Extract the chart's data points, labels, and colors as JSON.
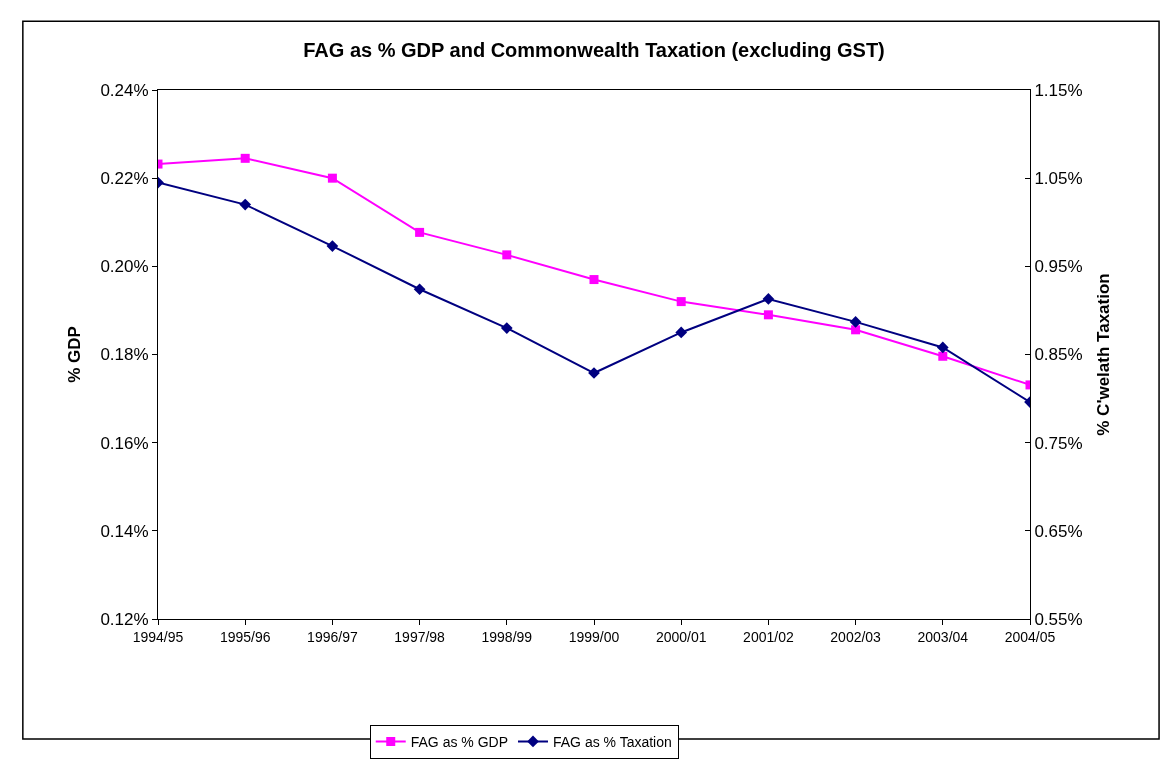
{
  "chart_data": {
    "type": "line",
    "title": "FAG as % GDP and Commonwealth Taxation (excluding GST)",
    "ylabel": "% GDP",
    "y2label": "% C'welath Taxation",
    "categories": [
      "1994/95",
      "1995/96",
      "1996/97",
      "1997/98",
      "1998/99",
      "1999/00",
      "2000/01",
      "2001/02",
      "2002/03",
      "2003/04",
      "2004/05"
    ],
    "series": [
      {
        "name": "FAG as % GDP",
        "color": "#ff00ff",
        "marker": "square",
        "values": [
          0.2232,
          0.2245,
          0.22,
          0.2077,
          0.2026,
          0.197,
          0.192,
          0.189,
          0.1856,
          0.1796,
          0.1731
        ]
      },
      {
        "name": "FAG as % Taxation",
        "color": "#000080",
        "marker": "diamond",
        "axis": "y2",
        "values": [
          1.045,
          1.02,
          0.973,
          0.924,
          0.88,
          0.829,
          0.875,
          0.913,
          0.887,
          0.858,
          0.796
        ]
      }
    ],
    "ylim": [
      0.12,
      0.24
    ],
    "yticks": [
      {
        "value": 0.12,
        "label": "0.12%"
      },
      {
        "value": 0.14,
        "label": "0.14%"
      },
      {
        "value": 0.16,
        "label": "0.16%"
      },
      {
        "value": 0.18,
        "label": "0.18%"
      },
      {
        "value": 0.2,
        "label": "0.20%"
      },
      {
        "value": 0.22,
        "label": "0.22%"
      },
      {
        "value": 0.24,
        "label": "0.24%"
      }
    ],
    "y2lim": [
      0.55,
      1.15
    ],
    "y2ticks": [
      {
        "value": 0.55,
        "label": "0.55%"
      },
      {
        "value": 0.65,
        "label": "0.65%"
      },
      {
        "value": 0.75,
        "label": "0.75%"
      },
      {
        "value": 0.85,
        "label": "0.85%"
      },
      {
        "value": 0.95,
        "label": "0.95%"
      },
      {
        "value": 1.05,
        "label": "1.05%"
      },
      {
        "value": 1.15,
        "label": "1.15%"
      }
    ],
    "grid": false,
    "legend": "bottom",
    "line_style": "solid"
  }
}
